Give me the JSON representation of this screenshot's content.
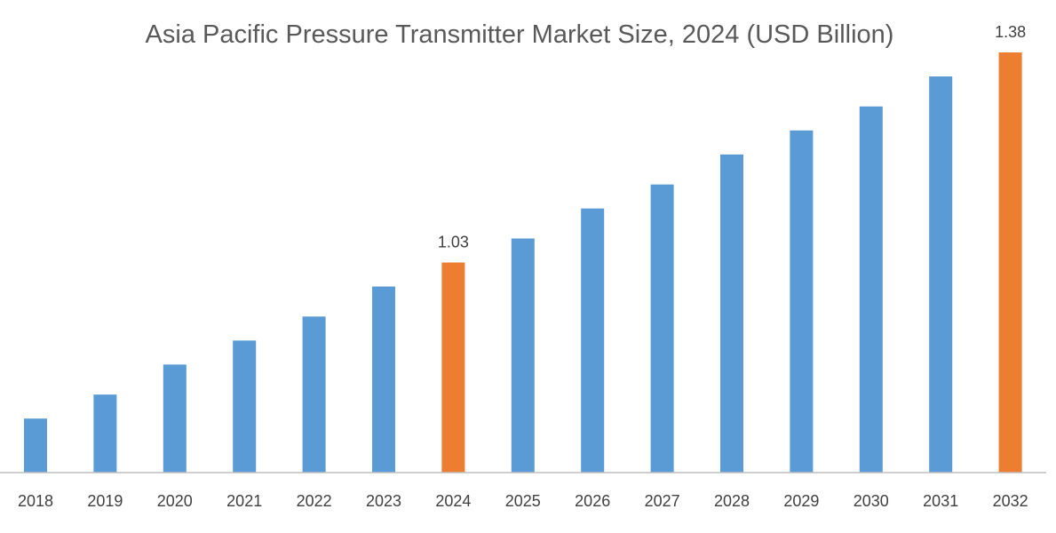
{
  "chart_data": {
    "type": "bar",
    "title": "Asia Pacific Pressure Transmitter Market Size, 2024 (USD Billion)",
    "xlabel": "",
    "ylabel": "",
    "categories": [
      "2018",
      "2019",
      "2020",
      "2021",
      "2022",
      "2023",
      "2024",
      "2025",
      "2026",
      "2027",
      "2028",
      "2029",
      "2030",
      "2031",
      "2032"
    ],
    "values": [
      0.77,
      0.81,
      0.86,
      0.9,
      0.94,
      0.99,
      1.03,
      1.07,
      1.12,
      1.16,
      1.21,
      1.25,
      1.29,
      1.34,
      1.38
    ],
    "data_labels": {
      "2024": "1.03",
      "2032": "1.38"
    },
    "highlighted": [
      "2024",
      "2032"
    ],
    "colors": {
      "default": "#5B9BD5",
      "highlight": "#ED7D31",
      "axis": "#BFBFBF"
    },
    "ylim": [
      0.68,
      1.38
    ],
    "grid": false,
    "y_axis_visible": false
  }
}
